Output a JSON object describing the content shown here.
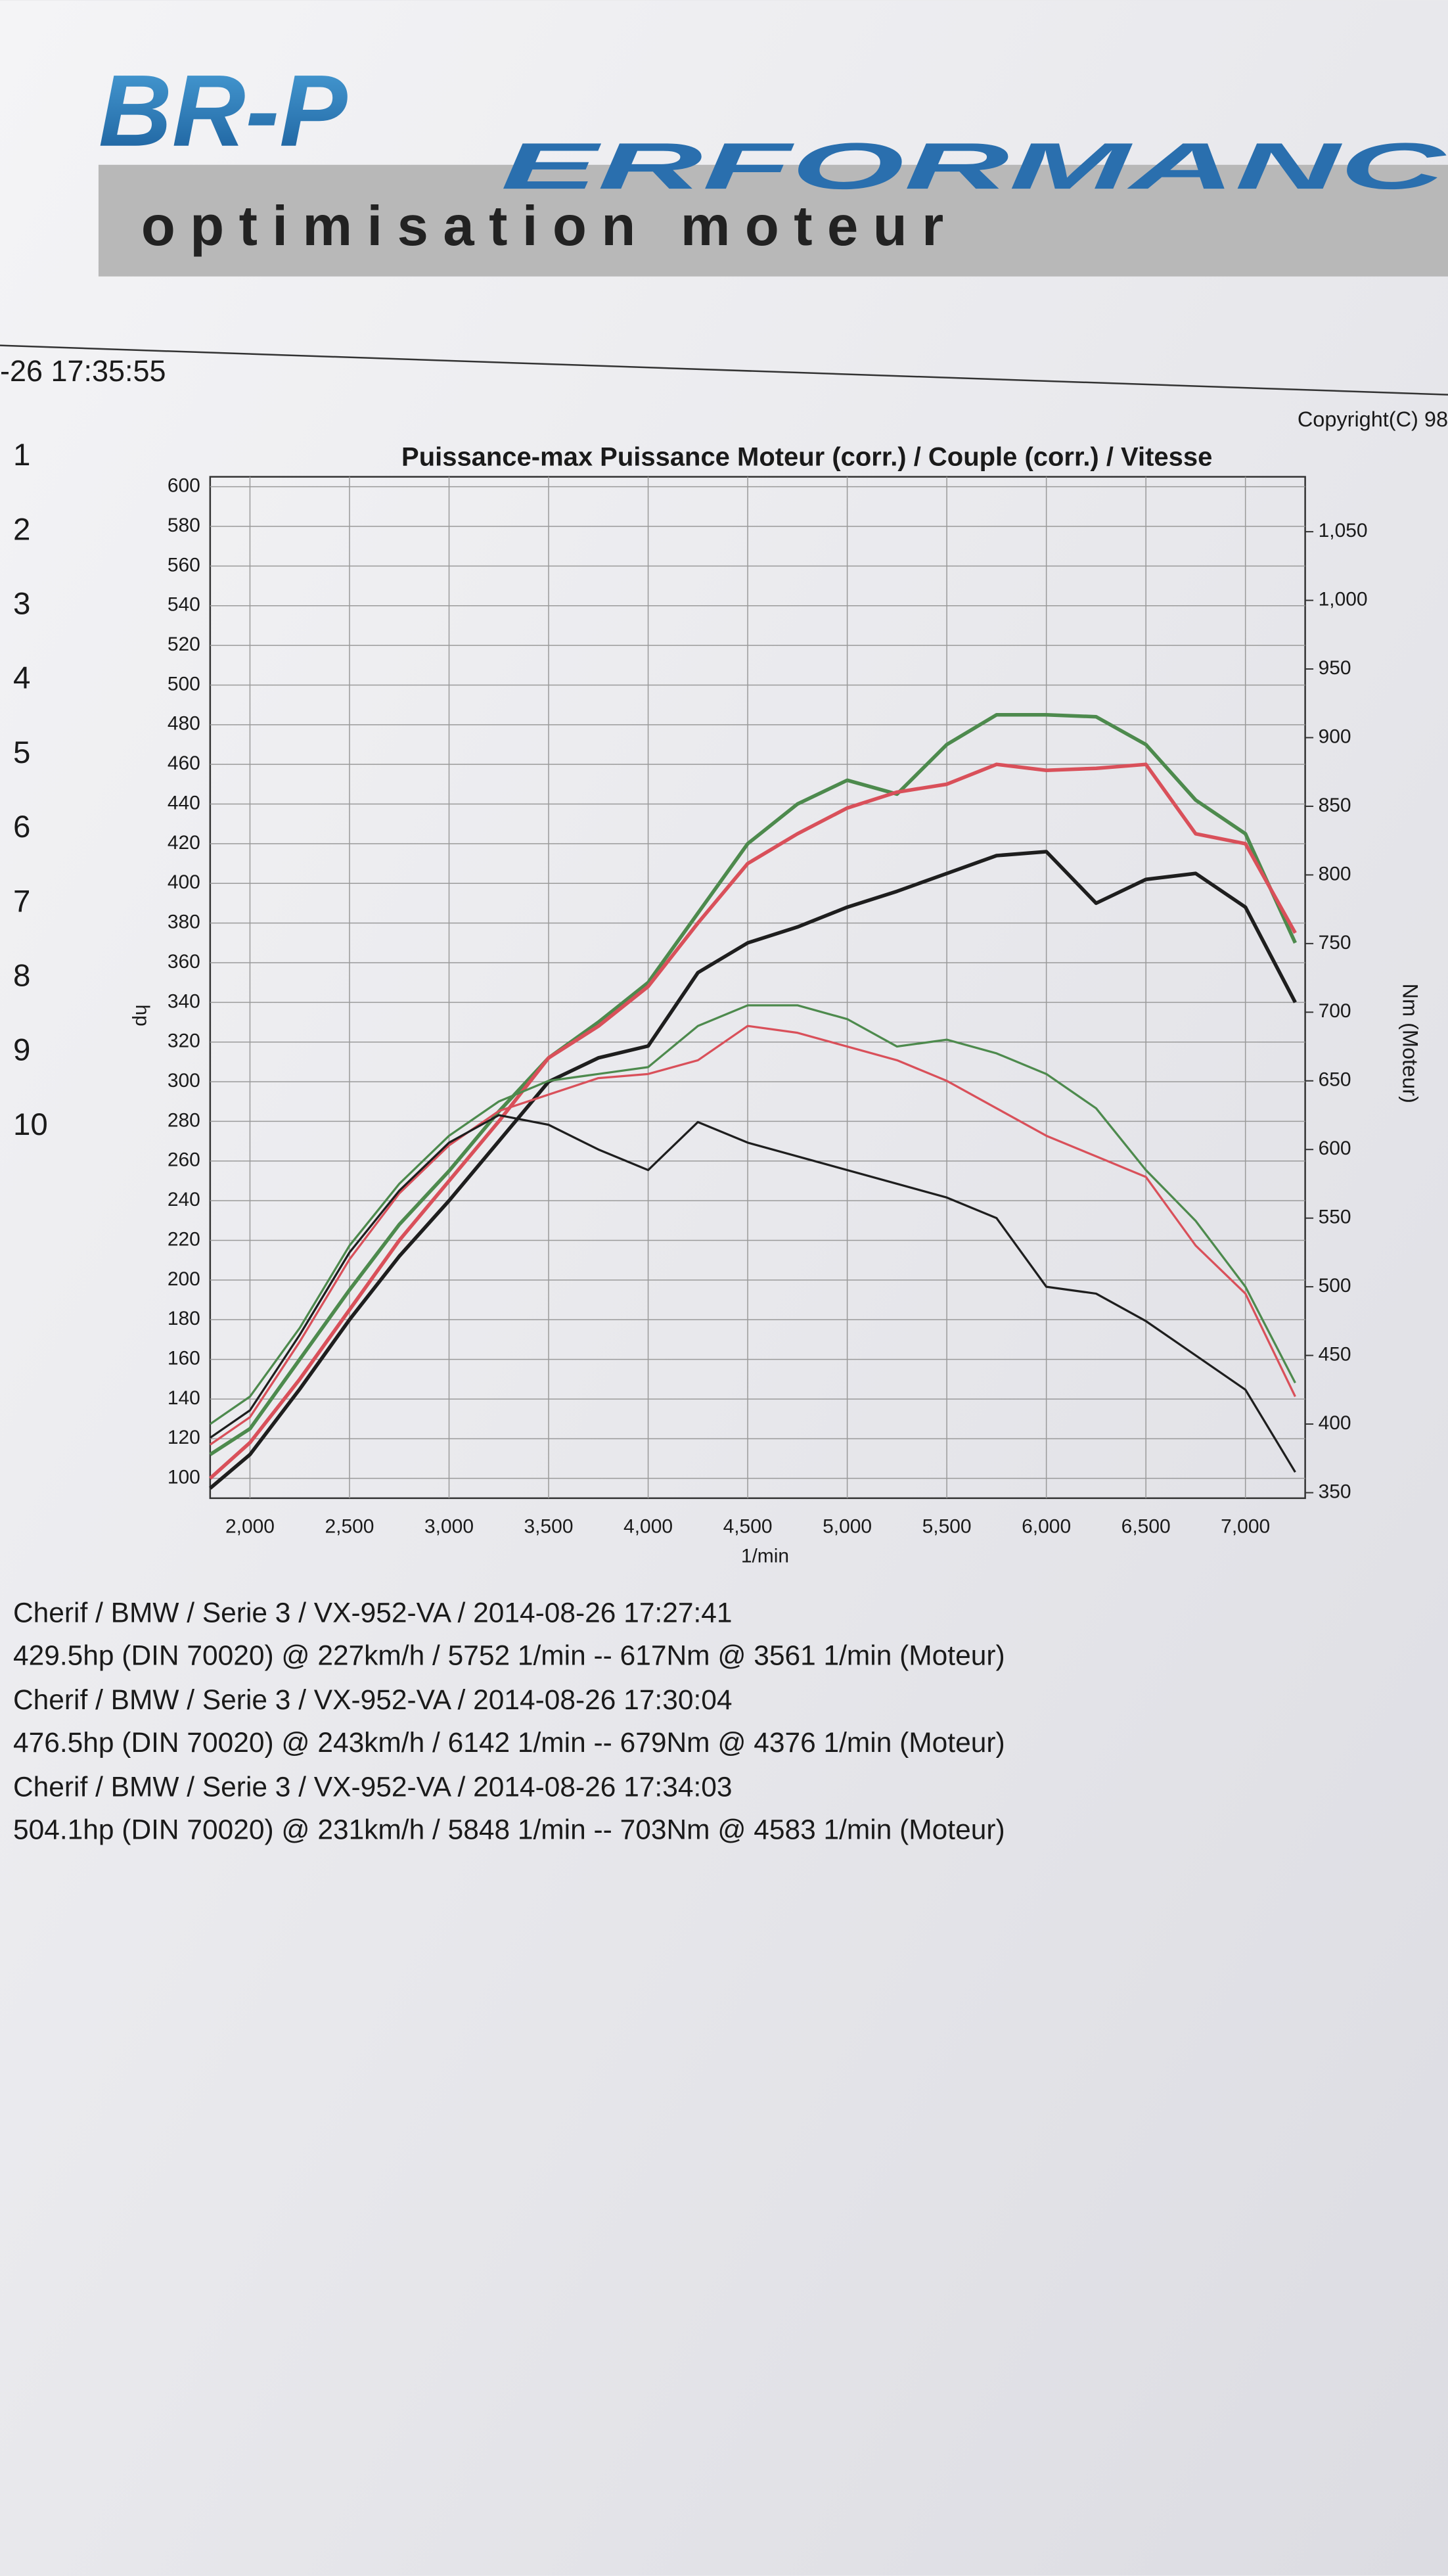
{
  "header": {
    "logo_left": "BR-P",
    "logo_right": "ERFORMANC",
    "tagline": "optimisation moteur"
  },
  "timestamp": "-26 17:35:55",
  "copyright": "Copyright(C) 98",
  "side_numbers": [
    1,
    2,
    3,
    4,
    5,
    6,
    7,
    8,
    9,
    10
  ],
  "chart_data": {
    "type": "line",
    "title": "Puissance-max Puissance Moteur (corr.) / Couple (corr.) / Vitesse",
    "xlabel": "1/min",
    "ylabel": "hp",
    "y2label": "Nm (Moteur)",
    "grid": true,
    "xlim": [
      1800,
      7300
    ],
    "ylim": [
      90,
      605
    ],
    "y2lim": [
      346,
      1090
    ],
    "xticks": [
      {
        "value": 2000,
        "label": "2,000"
      },
      {
        "value": 2500,
        "label": "2,500"
      },
      {
        "value": 3000,
        "label": "3,000"
      },
      {
        "value": 3500,
        "label": "3,500"
      },
      {
        "value": 4000,
        "label": "4,000"
      },
      {
        "value": 4500,
        "label": "4,500"
      },
      {
        "value": 5000,
        "label": "5,000"
      },
      {
        "value": 5500,
        "label": "5,500"
      },
      {
        "value": 6000,
        "label": "6,000"
      },
      {
        "value": 6500,
        "label": "6,500"
      },
      {
        "value": 7000,
        "label": "7,000"
      }
    ],
    "yticks": [
      100,
      120,
      140,
      160,
      180,
      200,
      220,
      240,
      260,
      280,
      300,
      320,
      340,
      360,
      380,
      400,
      420,
      440,
      460,
      480,
      500,
      520,
      540,
      560,
      580,
      600
    ],
    "y2ticks": [
      350,
      400,
      450,
      500,
      550,
      600,
      650,
      700,
      750,
      800,
      850,
      900,
      950,
      {
        "value": 1000,
        "label": "1,000"
      },
      {
        "value": 1050,
        "label": "1,050"
      }
    ],
    "x": [
      1800,
      2000,
      2250,
      2500,
      2750,
      3000,
      3250,
      3500,
      3750,
      4000,
      4250,
      4500,
      4750,
      5000,
      5250,
      5500,
      5750,
      6000,
      6250,
      6500,
      6750,
      7000,
      7250
    ],
    "series": [
      {
        "color": "#4d8a4d",
        "axis": "y",
        "values": [
          112,
          125,
          160,
          195,
          228,
          255,
          285,
          312,
          330,
          350,
          385,
          420,
          440,
          452,
          445,
          470,
          485,
          485,
          484,
          470,
          442,
          425,
          370
        ]
      },
      {
        "color": "#d9505a",
        "axis": "y",
        "values": [
          100,
          118,
          150,
          185,
          220,
          250,
          280,
          312,
          328,
          348,
          380,
          410,
          425,
          438,
          446,
          450,
          460,
          457,
          458,
          460,
          425,
          420,
          375
        ]
      },
      {
        "color": "#1e1e1e",
        "axis": "y",
        "values": [
          95,
          112,
          145,
          180,
          212,
          240,
          270,
          300,
          312,
          318,
          355,
          370,
          378,
          388,
          396,
          405,
          414,
          416,
          390,
          402,
          405,
          388,
          340
        ]
      },
      {
        "color": "#4d8a4d",
        "axis": "y2",
        "values": [
          400,
          420,
          470,
          530,
          575,
          610,
          635,
          650,
          655,
          660,
          690,
          705,
          705,
          695,
          675,
          680,
          670,
          655,
          630,
          585,
          548,
          500,
          430
        ]
      },
      {
        "color": "#d9505a",
        "axis": "y2",
        "values": [
          385,
          405,
          460,
          520,
          568,
          603,
          628,
          640,
          652,
          655,
          665,
          690,
          685,
          675,
          665,
          650,
          630,
          610,
          595,
          580,
          530,
          495,
          420
        ]
      },
      {
        "color": "#1e1e1e",
        "axis": "y2",
        "values": [
          390,
          410,
          465,
          525,
          570,
          605,
          625,
          618,
          600,
          585,
          620,
          605,
          595,
          585,
          575,
          565,
          550,
          500,
          495,
          475,
          450,
          425,
          365
        ]
      }
    ]
  },
  "runs": [
    {
      "title": "Cherif / BMW / Serie 3 / VX-952-VA / 2014-08-26 17:27:41",
      "result": "429.5hp (DIN 70020) @ 227km/h / 5752 1/min -- 617Nm @ 3561 1/min (Moteur)"
    },
    {
      "title": "Cherif / BMW / Serie 3 / VX-952-VA / 2014-08-26 17:30:04",
      "result": "476.5hp (DIN 70020) @ 243km/h / 6142 1/min -- 679Nm @ 4376 1/min (Moteur)"
    },
    {
      "title": "Cherif / BMW / Serie 3 / VX-952-VA / 2014-08-26 17:34:03",
      "result": "504.1hp (DIN 70020) @ 231km/h / 5848 1/min -- 703Nm @ 4583 1/min (Moteur)"
    }
  ]
}
